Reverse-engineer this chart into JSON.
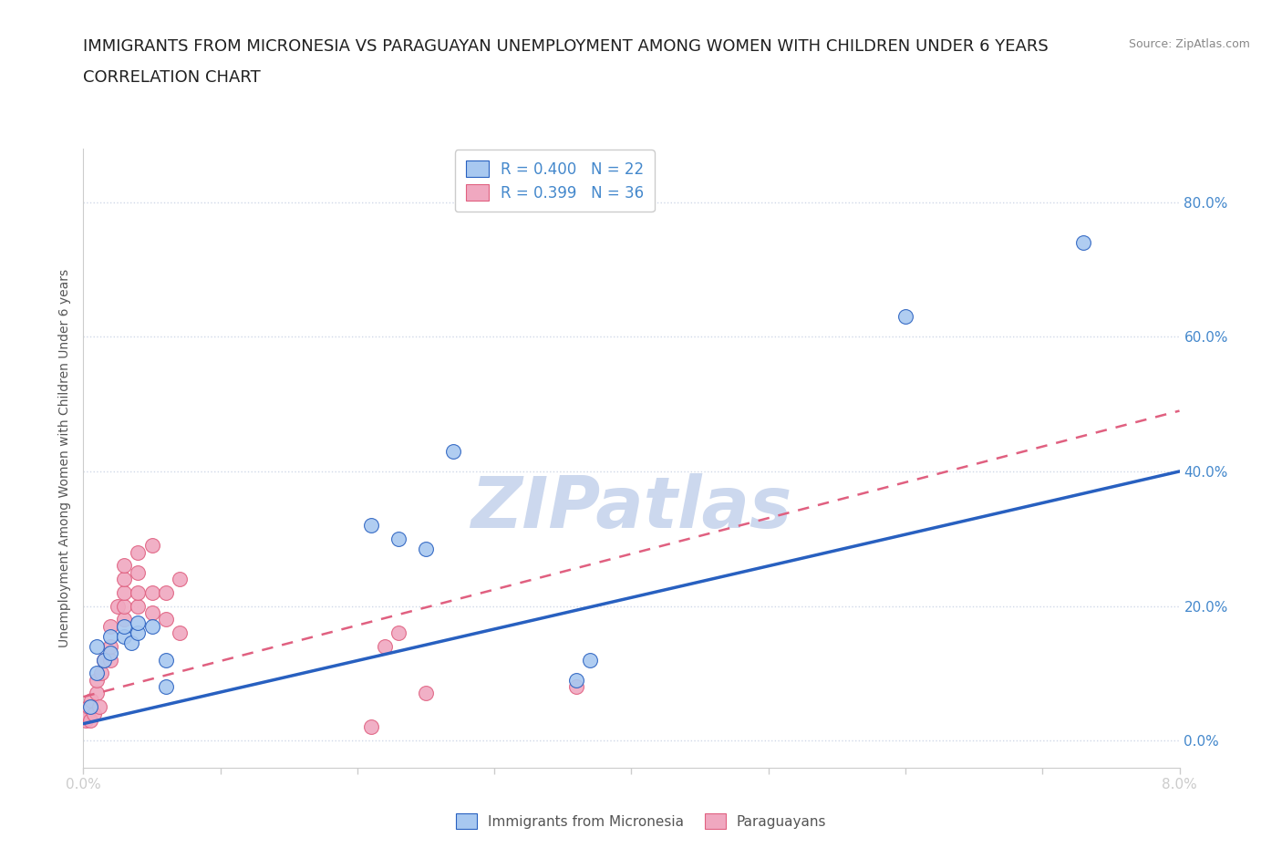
{
  "title_line1": "IMMIGRANTS FROM MICRONESIA VS PARAGUAYAN UNEMPLOYMENT AMONG WOMEN WITH CHILDREN UNDER 6 YEARS",
  "title_line2": "CORRELATION CHART",
  "source_text": "Source: ZipAtlas.com",
  "ylabel": "Unemployment Among Women with Children Under 6 years",
  "xmin": 0.0,
  "xmax": 0.08,
  "ymin": -0.04,
  "ymax": 0.88,
  "yticks": [
    0.0,
    0.2,
    0.4,
    0.6,
    0.8
  ],
  "ytick_labels": [
    "0.0%",
    "20.0%",
    "40.0%",
    "60.0%",
    "80.0%"
  ],
  "xticks": [
    0.0,
    0.01,
    0.02,
    0.03,
    0.04,
    0.05,
    0.06,
    0.07,
    0.08
  ],
  "xtick_labels": [
    "0.0%",
    "",
    "",
    "",
    "",
    "",
    "",
    "",
    "8.0%"
  ],
  "blue_r": 0.4,
  "blue_n": 22,
  "pink_r": 0.399,
  "pink_n": 36,
  "blue_color": "#a8c8f0",
  "pink_color": "#f0a8c0",
  "blue_line_color": "#2860c0",
  "pink_line_color": "#e06080",
  "watermark_text": "ZIPatlas",
  "watermark_color": "#ccd8ee",
  "blue_points_x": [
    0.0005,
    0.001,
    0.001,
    0.0015,
    0.002,
    0.002,
    0.003,
    0.003,
    0.0035,
    0.004,
    0.004,
    0.005,
    0.006,
    0.006,
    0.021,
    0.023,
    0.025,
    0.027,
    0.036,
    0.037,
    0.06,
    0.073
  ],
  "blue_points_y": [
    0.05,
    0.1,
    0.14,
    0.12,
    0.13,
    0.155,
    0.155,
    0.17,
    0.145,
    0.16,
    0.175,
    0.17,
    0.08,
    0.12,
    0.32,
    0.3,
    0.285,
    0.43,
    0.09,
    0.12,
    0.63,
    0.74
  ],
  "pink_points_x": [
    0.0002,
    0.0003,
    0.0004,
    0.0005,
    0.0006,
    0.0008,
    0.001,
    0.001,
    0.0012,
    0.0013,
    0.0015,
    0.002,
    0.002,
    0.002,
    0.0025,
    0.003,
    0.003,
    0.003,
    0.003,
    0.003,
    0.004,
    0.004,
    0.004,
    0.004,
    0.005,
    0.005,
    0.005,
    0.006,
    0.006,
    0.007,
    0.007,
    0.021,
    0.022,
    0.023,
    0.025,
    0.036
  ],
  "pink_points_y": [
    0.03,
    0.04,
    0.05,
    0.03,
    0.06,
    0.04,
    0.07,
    0.09,
    0.05,
    0.1,
    0.12,
    0.12,
    0.14,
    0.17,
    0.2,
    0.18,
    0.2,
    0.22,
    0.24,
    0.26,
    0.2,
    0.22,
    0.25,
    0.28,
    0.19,
    0.22,
    0.29,
    0.18,
    0.22,
    0.16,
    0.24,
    0.02,
    0.14,
    0.16,
    0.07,
    0.08
  ],
  "legend_label_blue": "Immigrants from Micronesia",
  "legend_label_pink": "Paraguayans",
  "blue_trend_x": [
    0.0,
    0.08
  ],
  "blue_trend_y": [
    0.025,
    0.4
  ],
  "pink_trend_x": [
    0.0,
    0.08
  ],
  "pink_trend_y": [
    0.065,
    0.49
  ],
  "title_fontsize": 13,
  "subtitle_fontsize": 13,
  "axis_label_fontsize": 10,
  "tick_label_fontsize": 11,
  "tick_color": "#4488cc",
  "grid_color": "#d0d8e8",
  "background_color": "#ffffff"
}
